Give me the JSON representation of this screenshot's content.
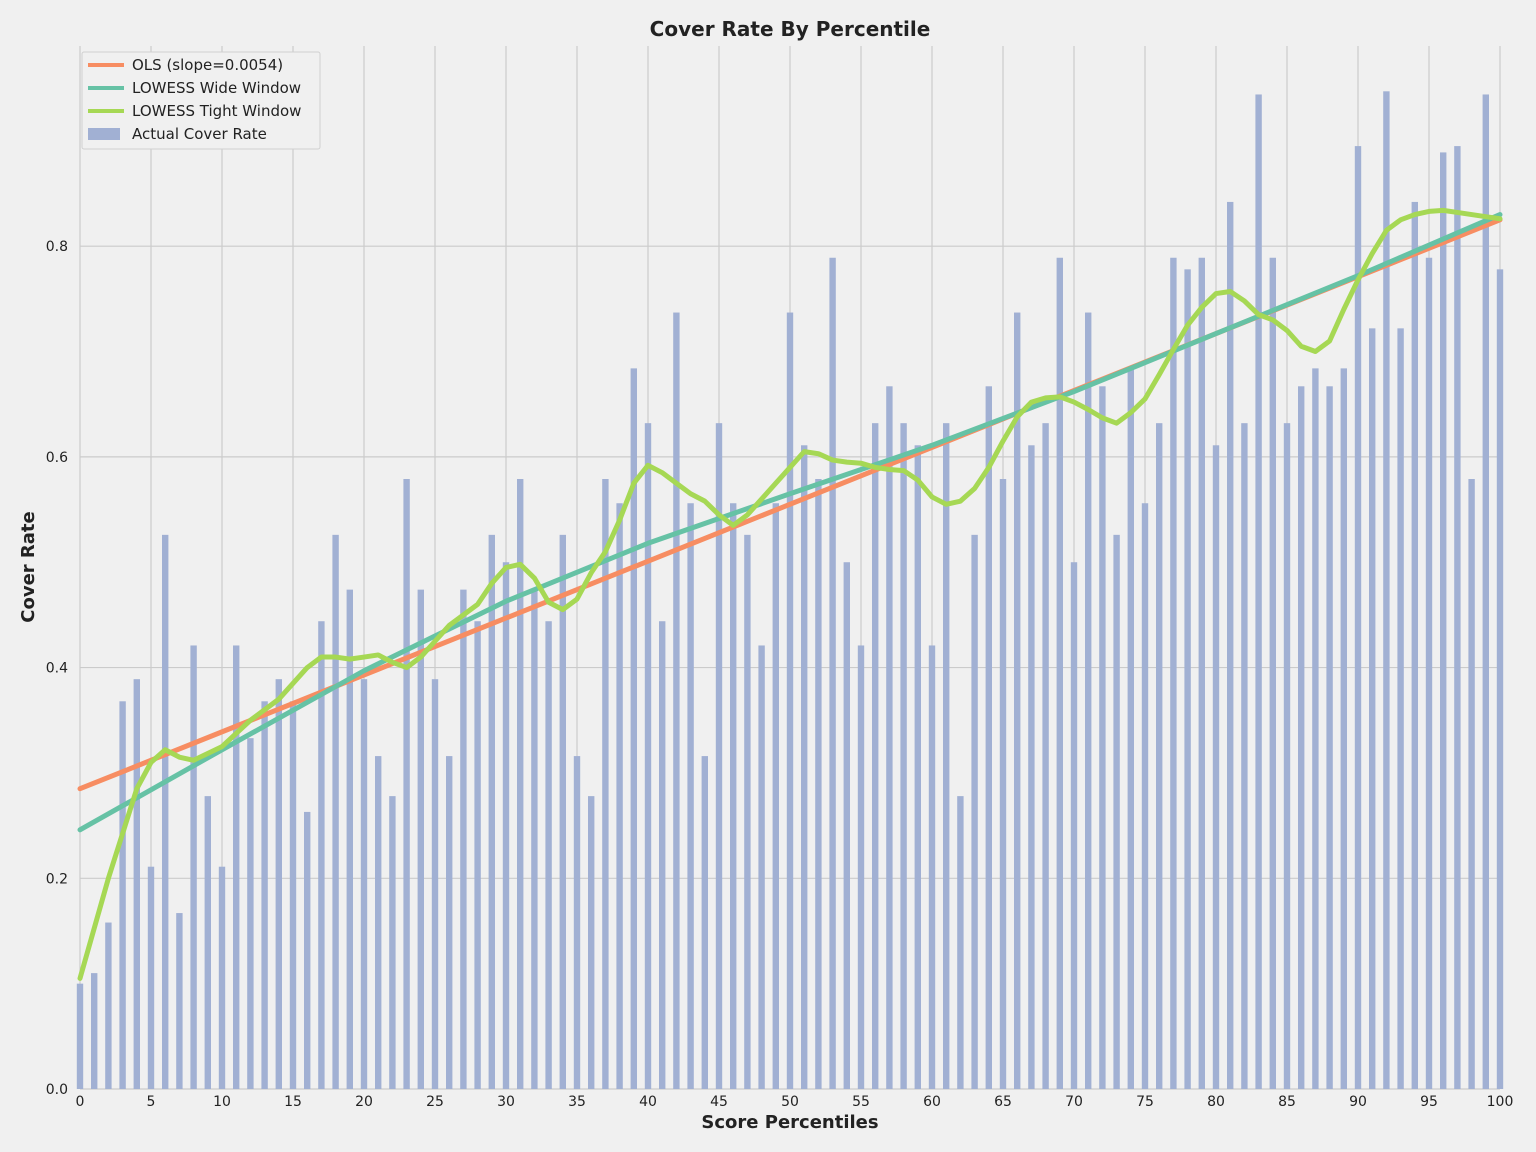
{
  "chart_data": {
    "type": "bar",
    "title": "Cover Rate By Percentile",
    "xlabel": "Score Percentiles",
    "ylabel": "Cover Rate",
    "xlim": [
      0,
      100
    ],
    "ylim": [
      0,
      0.99
    ],
    "grid": true,
    "legend_position": "top-left",
    "x_ticks": [
      0,
      5,
      10,
      15,
      20,
      25,
      30,
      35,
      40,
      45,
      50,
      55,
      60,
      65,
      70,
      75,
      80,
      85,
      90,
      95,
      100
    ],
    "y_ticks": [
      0.0,
      0.2,
      0.4,
      0.6,
      0.8
    ],
    "colors": {
      "background": "#f0f0f0",
      "grid": "#cbcbcb",
      "bars": "#a1b0d3",
      "ols": "#f78d62",
      "lowess_wide": "#66c2a5",
      "lowess_tight": "#a6d854"
    },
    "bars": {
      "name": "Actual Cover Rate",
      "x": [
        0,
        1,
        2,
        3,
        4,
        5,
        6,
        7,
        8,
        9,
        10,
        11,
        12,
        13,
        14,
        15,
        16,
        17,
        18,
        19,
        20,
        21,
        22,
        23,
        24,
        25,
        26,
        27,
        28,
        29,
        30,
        31,
        32,
        33,
        34,
        35,
        36,
        37,
        38,
        39,
        40,
        41,
        42,
        43,
        44,
        45,
        46,
        47,
        48,
        49,
        50,
        51,
        52,
        53,
        54,
        55,
        56,
        57,
        58,
        59,
        60,
        61,
        62,
        63,
        64,
        65,
        66,
        67,
        68,
        69,
        70,
        71,
        72,
        73,
        74,
        75,
        76,
        77,
        78,
        79,
        80,
        81,
        82,
        83,
        84,
        85,
        86,
        87,
        88,
        89,
        90,
        91,
        92,
        93,
        94,
        95,
        96,
        97,
        98,
        99,
        100
      ],
      "values": [
        0.1,
        0.11,
        0.158,
        0.368,
        0.389,
        0.211,
        0.526,
        0.167,
        0.421,
        0.278,
        0.211,
        0.421,
        0.333,
        0.368,
        0.389,
        0.368,
        0.263,
        0.444,
        0.526,
        0.474,
        0.389,
        0.316,
        0.278,
        0.579,
        0.474,
        0.389,
        0.316,
        0.474,
        0.444,
        0.526,
        0.5,
        0.579,
        0.474,
        0.444,
        0.526,
        0.316,
        0.278,
        0.579,
        0.556,
        0.684,
        0.632,
        0.444,
        0.737,
        0.556,
        0.316,
        0.632,
        0.556,
        0.526,
        0.421,
        0.556,
        0.737,
        0.611,
        0.579,
        0.789,
        0.5,
        0.421,
        0.632,
        0.667,
        0.632,
        0.611,
        0.421,
        0.632,
        0.278,
        0.526,
        0.667,
        0.579,
        0.737,
        0.611,
        0.632,
        0.789,
        0.5,
        0.737,
        0.667,
        0.526,
        0.684,
        0.556,
        0.632,
        0.789,
        0.778,
        0.789,
        0.611,
        0.842,
        0.632,
        0.944,
        0.789,
        0.632,
        0.667,
        0.684,
        0.667,
        0.684,
        0.895,
        0.722,
        0.947,
        0.722,
        0.842,
        0.789,
        0.889,
        0.895,
        0.579,
        0.944,
        0.778
      ]
    },
    "series": [
      {
        "name": "OLS (slope=0.0054)",
        "type": "line",
        "x": [
          0,
          100
        ],
        "values": [
          0.285,
          0.825
        ]
      },
      {
        "name": "LOWESS Wide Window",
        "type": "line",
        "x": [
          0,
          10,
          20,
          30,
          40,
          50,
          60,
          70,
          80,
          90,
          100
        ],
        "values": [
          0.246,
          0.322,
          0.397,
          0.463,
          0.518,
          0.565,
          0.611,
          0.662,
          0.717,
          0.772,
          0.83
        ]
      },
      {
        "name": "LOWESS Tight Window",
        "type": "line",
        "x": [
          0,
          2,
          4,
          5,
          6,
          7,
          8,
          10,
          12,
          14,
          16,
          17,
          18,
          19,
          20,
          21,
          22,
          23,
          24,
          25,
          26,
          28,
          29,
          30,
          31,
          32,
          33,
          34,
          35,
          36,
          37,
          38,
          39,
          40,
          41,
          42,
          43,
          44,
          45,
          46,
          47,
          48,
          49,
          50,
          51,
          52,
          53,
          54,
          55,
          56,
          57,
          58,
          59,
          60,
          61,
          62,
          63,
          64,
          65,
          66,
          67,
          68,
          69,
          70,
          71,
          72,
          73,
          74,
          75,
          76,
          77,
          78,
          79,
          80,
          81,
          82,
          83,
          84,
          85,
          86,
          87,
          88,
          89,
          90,
          91,
          92,
          93,
          94,
          95,
          96,
          97,
          98,
          99,
          100
        ],
        "values": [
          0.105,
          0.2,
          0.285,
          0.31,
          0.322,
          0.315,
          0.312,
          0.325,
          0.35,
          0.37,
          0.4,
          0.41,
          0.41,
          0.408,
          0.41,
          0.412,
          0.405,
          0.4,
          0.41,
          0.425,
          0.44,
          0.46,
          0.48,
          0.495,
          0.498,
          0.485,
          0.462,
          0.455,
          0.465,
          0.49,
          0.51,
          0.54,
          0.575,
          0.592,
          0.585,
          0.575,
          0.565,
          0.558,
          0.545,
          0.535,
          0.545,
          0.56,
          0.575,
          0.59,
          0.605,
          0.603,
          0.597,
          0.595,
          0.594,
          0.59,
          0.588,
          0.587,
          0.578,
          0.562,
          0.555,
          0.558,
          0.57,
          0.59,
          0.615,
          0.638,
          0.652,
          0.656,
          0.657,
          0.652,
          0.645,
          0.637,
          0.632,
          0.642,
          0.655,
          0.678,
          0.702,
          0.725,
          0.742,
          0.755,
          0.757,
          0.748,
          0.735,
          0.73,
          0.72,
          0.705,
          0.7,
          0.71,
          0.74,
          0.768,
          0.793,
          0.815,
          0.825,
          0.83,
          0.833,
          0.834,
          0.832,
          0.83,
          0.828,
          0.826
        ]
      }
    ]
  }
}
